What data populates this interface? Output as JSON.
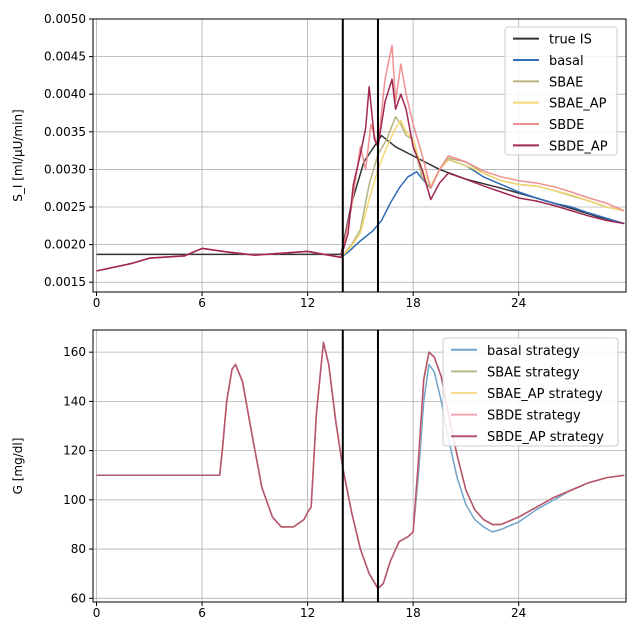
{
  "chart_data": [
    {
      "type": "line",
      "ylabel": "S_I [ml/μU/min]",
      "xlabel": "",
      "xlim": [
        -0.2,
        30.1
      ],
      "ylim": [
        0.00137,
        0.005
      ],
      "x_ticks": [
        0,
        6,
        12,
        18,
        24
      ],
      "x_tick_labels": [
        "0",
        "6",
        "12",
        "18",
        "24"
      ],
      "y_ticks": [
        0.0015,
        0.002,
        0.0025,
        0.003,
        0.0035,
        0.004,
        0.0045,
        0.005
      ],
      "y_tick_labels": [
        "0.0015",
        "0.0020",
        "0.0025",
        "0.0030",
        "0.0035",
        "0.0040",
        "0.0045",
        "0.0050"
      ],
      "grid": true,
      "legend_position": "top-right",
      "vlines": [
        14,
        16
      ],
      "series": [
        {
          "name": "true IS",
          "color": "#333333",
          "width": 1.5,
          "opacity": 1.0,
          "x": [
            0,
            13.9,
            14.5,
            15.2,
            16.2,
            17.0,
            18.0,
            19.5,
            21.0,
            23.0,
            25.0,
            27.0,
            28.5,
            30.0
          ],
          "y": [
            0.00187,
            0.00187,
            0.00255,
            0.0031,
            0.00345,
            0.0033,
            0.00318,
            0.003,
            0.00287,
            0.00275,
            0.00262,
            0.00248,
            0.00237,
            0.00228
          ]
        },
        {
          "name": "basal",
          "color": "#2e6db5",
          "width": 1.5,
          "opacity": 1.0,
          "x": [
            0,
            2,
            3,
            5,
            6,
            7.5,
            9,
            12,
            13.9,
            14.3,
            15,
            15.7,
            16.2,
            16.7,
            17.2,
            17.7,
            18.2,
            18.5,
            19.0,
            19.5,
            20,
            21,
            22,
            23,
            24,
            25,
            26,
            27,
            28,
            29,
            30
          ],
          "y": [
            0.00165,
            0.00175,
            0.00182,
            0.00185,
            0.00195,
            0.0019,
            0.00186,
            0.00191,
            0.00183,
            0.0019,
            0.00205,
            0.00218,
            0.00232,
            0.00255,
            0.00275,
            0.0029,
            0.00297,
            0.00288,
            0.00275,
            0.003,
            0.00313,
            0.00305,
            0.0029,
            0.0028,
            0.0027,
            0.00262,
            0.00255,
            0.0025,
            0.00242,
            0.00235,
            0.00228
          ]
        },
        {
          "name": "SBAE",
          "color": "#b3b07a",
          "width": 1.5,
          "opacity": 0.95,
          "x": [
            0,
            2,
            3,
            5,
            6,
            7.5,
            9,
            12,
            13.9,
            14.5,
            15.0,
            15.5,
            16.0,
            16.5,
            17.0,
            17.3,
            17.6,
            18.0,
            18.5,
            19.0,
            19.5,
            20,
            21,
            22,
            23,
            24,
            25,
            26,
            27,
            28,
            29,
            30
          ],
          "y": [
            0.00165,
            0.00175,
            0.00182,
            0.00185,
            0.00195,
            0.0019,
            0.00186,
            0.00191,
            0.00183,
            0.002,
            0.0022,
            0.0028,
            0.0032,
            0.0034,
            0.0037,
            0.0036,
            0.00345,
            0.0034,
            0.0029,
            0.00275,
            0.003,
            0.00315,
            0.0031,
            0.00295,
            0.00285,
            0.0028,
            0.00278,
            0.00272,
            0.00265,
            0.00258,
            0.0025,
            0.00245
          ]
        },
        {
          "name": "SBAE_AP",
          "color": "#f5d76e",
          "width": 1.5,
          "opacity": 0.95,
          "x": [
            0,
            2,
            3,
            5,
            6,
            7.5,
            9,
            12,
            13.9,
            14.5,
            15.0,
            15.5,
            16.0,
            16.5,
            17.0,
            17.3,
            17.6,
            18.0,
            18.5,
            19.0,
            19.5,
            20,
            21,
            22,
            23,
            24,
            25,
            26,
            27,
            28,
            29,
            30
          ],
          "y": [
            0.00165,
            0.00175,
            0.00182,
            0.00185,
            0.00195,
            0.0019,
            0.00186,
            0.00191,
            0.00183,
            0.00198,
            0.00215,
            0.0026,
            0.003,
            0.0033,
            0.00355,
            0.00365,
            0.0035,
            0.0034,
            0.003,
            0.00278,
            0.003,
            0.00313,
            0.00305,
            0.00295,
            0.00285,
            0.0028,
            0.00278,
            0.00272,
            0.00266,
            0.00258,
            0.0025,
            0.00245
          ]
        },
        {
          "name": "SBDE",
          "color": "#ef8a8a",
          "width": 1.5,
          "opacity": 0.95,
          "x": [
            0,
            2,
            3,
            5,
            6,
            7.5,
            9,
            12,
            13.9,
            14.5,
            15.0,
            15.3,
            15.6,
            16.0,
            16.4,
            16.8,
            17.0,
            17.3,
            17.6,
            18.0,
            18.5,
            19.0,
            19.5,
            20,
            21,
            22,
            23,
            24,
            25,
            26,
            27,
            28,
            29,
            30
          ],
          "y": [
            0.00165,
            0.00175,
            0.00182,
            0.00185,
            0.00195,
            0.0019,
            0.00186,
            0.00191,
            0.00183,
            0.0025,
            0.0033,
            0.003,
            0.0036,
            0.0033,
            0.0042,
            0.00465,
            0.0039,
            0.0044,
            0.004,
            0.0036,
            0.0032,
            0.00275,
            0.003,
            0.00318,
            0.0031,
            0.00298,
            0.0029,
            0.00285,
            0.00282,
            0.00277,
            0.0027,
            0.00262,
            0.00255,
            0.00245
          ]
        },
        {
          "name": "SBDE_AP",
          "color": "#9b1c4a",
          "width": 1.5,
          "opacity": 0.95,
          "x": [
            0,
            2,
            3,
            5,
            6,
            7.5,
            9,
            12,
            13.9,
            14.3,
            14.6,
            15.0,
            15.3,
            15.5,
            15.8,
            16.0,
            16.4,
            16.8,
            17.0,
            17.3,
            17.6,
            18.0,
            18.5,
            19.0,
            19.5,
            20,
            21,
            22,
            23,
            24,
            25,
            26,
            27,
            28,
            29,
            30
          ],
          "y": [
            0.00165,
            0.00175,
            0.00182,
            0.00185,
            0.00195,
            0.0019,
            0.00186,
            0.00191,
            0.00183,
            0.00215,
            0.0028,
            0.0032,
            0.00355,
            0.0041,
            0.0034,
            0.0033,
            0.0039,
            0.0042,
            0.0038,
            0.004,
            0.0038,
            0.0033,
            0.003,
            0.0026,
            0.00282,
            0.00295,
            0.00287,
            0.00278,
            0.0027,
            0.00262,
            0.00258,
            0.00252,
            0.00245,
            0.00238,
            0.00232,
            0.00228
          ]
        }
      ]
    },
    {
      "type": "line",
      "ylabel": "G [mg/dl]",
      "xlabel": "",
      "xlim": [
        -0.2,
        30.1
      ],
      "ylim": [
        58.5,
        169
      ],
      "x_ticks": [
        0,
        6,
        12,
        18,
        24
      ],
      "x_tick_labels": [
        "0",
        "6",
        "12",
        "18",
        "24"
      ],
      "y_ticks": [
        60,
        80,
        100,
        120,
        140,
        160
      ],
      "y_tick_labels": [
        "60",
        "80",
        "100",
        "120",
        "140",
        "160"
      ],
      "grid": true,
      "legend_position": "top-right",
      "vlines": [
        14,
        16
      ],
      "series": [
        {
          "name": "basal strategy",
          "color": "#6fa3cc",
          "width": 1.5,
          "opacity": 1.0,
          "x": [
            0,
            7.0,
            7.15,
            7.4,
            7.7,
            7.9,
            8.3,
            8.8,
            9.4,
            10.0,
            10.5,
            11.2,
            11.8,
            12.0,
            12.2,
            12.5,
            12.9,
            13.2,
            13.6,
            14.0,
            14.5,
            15.0,
            15.5,
            16.0,
            16.3,
            16.7,
            17.2,
            17.7,
            18.0,
            18.3,
            18.6,
            18.9,
            19.2,
            19.6,
            20.0,
            20.5,
            21.0,
            21.5,
            22.0,
            22.5,
            23.0,
            24.0,
            25.0,
            26.0,
            27.0,
            28.0,
            29.0,
            30.0
          ],
          "y": [
            110,
            110,
            120,
            140,
            153,
            155,
            148,
            128,
            105,
            93,
            89,
            89,
            92,
            95,
            97,
            135,
            164,
            155,
            132,
            113,
            95,
            80,
            70,
            64,
            66,
            75,
            83,
            85,
            87,
            110,
            140,
            155,
            152,
            140,
            125,
            109,
            98,
            92,
            89,
            87,
            88,
            91,
            96,
            100,
            104,
            107,
            109,
            110
          ]
        },
        {
          "name": "SBAE strategy",
          "color": "#b8b88f",
          "width": 1.5,
          "opacity": 1.0,
          "x": [
            0,
            7.0,
            7.15,
            7.4,
            7.7,
            7.9,
            8.3,
            8.8,
            9.4,
            10.0,
            10.5,
            11.2,
            11.8,
            12.0,
            12.2,
            12.5,
            12.9,
            13.2,
            13.6,
            14.0,
            14.5,
            15.0,
            15.5,
            16.0,
            16.3,
            16.7,
            17.2,
            17.7,
            18.0,
            18.3,
            18.6,
            18.9,
            19.2,
            19.6,
            20.0,
            20.5,
            21.0,
            21.5,
            22.0,
            22.5,
            23.0,
            24.0,
            25.0,
            26.0,
            27.0,
            28.0,
            29.0,
            30.0
          ],
          "y": [
            110,
            110,
            120,
            140,
            153,
            155,
            148,
            128,
            105,
            93,
            89,
            89,
            92,
            95,
            97,
            135,
            164,
            155,
            132,
            113,
            95,
            80,
            70,
            64,
            66,
            75,
            83,
            85,
            87,
            115,
            148,
            160,
            158,
            150,
            135,
            118,
            104,
            96,
            92,
            90,
            90,
            93,
            97,
            101,
            104,
            107,
            109,
            110
          ]
        },
        {
          "name": "SBAE_AP strategy",
          "color": "#f6dc8c",
          "width": 1.5,
          "opacity": 1.0,
          "x": [
            0,
            7.0,
            7.15,
            7.4,
            7.7,
            7.9,
            8.3,
            8.8,
            9.4,
            10.0,
            10.5,
            11.2,
            11.8,
            12.0,
            12.2,
            12.5,
            12.9,
            13.2,
            13.6,
            14.0,
            14.5,
            15.0,
            15.5,
            16.0,
            16.3,
            16.7,
            17.2,
            17.7,
            18.0,
            18.3,
            18.6,
            18.9,
            19.2,
            19.6,
            20.0,
            20.5,
            21.0,
            21.5,
            22.0,
            22.5,
            23.0,
            24.0,
            25.0,
            26.0,
            27.0,
            28.0,
            29.0,
            30.0
          ],
          "y": [
            110,
            110,
            120,
            140,
            153,
            155,
            148,
            128,
            105,
            93,
            89,
            89,
            92,
            95,
            97,
            135,
            164,
            155,
            132,
            113,
            95,
            80,
            70,
            64,
            66,
            75,
            83,
            85,
            87,
            115,
            148,
            160,
            158,
            150,
            135,
            118,
            104,
            96,
            92,
            90,
            90,
            93,
            97,
            101,
            104,
            107,
            109,
            110
          ]
        },
        {
          "name": "SBDE strategy",
          "color": "#f4a6b6",
          "width": 1.5,
          "opacity": 1.0,
          "x": [
            0,
            7.0,
            7.15,
            7.4,
            7.7,
            7.9,
            8.3,
            8.8,
            9.4,
            10.0,
            10.5,
            11.2,
            11.8,
            12.0,
            12.2,
            12.5,
            12.9,
            13.2,
            13.6,
            14.0,
            14.5,
            15.0,
            15.5,
            16.0,
            16.3,
            16.7,
            17.2,
            17.7,
            18.0,
            18.3,
            18.6,
            18.9,
            19.2,
            19.6,
            20.0,
            20.5,
            21.0,
            21.5,
            22.0,
            22.5,
            23.0,
            24.0,
            25.0,
            26.0,
            27.0,
            28.0,
            29.0,
            30.0
          ],
          "y": [
            110,
            110,
            120,
            140,
            153,
            155,
            148,
            128,
            105,
            93,
            89,
            89,
            92,
            95,
            97,
            135,
            164,
            155,
            132,
            113,
            95,
            80,
            70,
            64,
            66,
            75,
            83,
            85,
            87,
            116,
            149,
            160,
            158,
            150,
            135,
            118,
            104,
            96,
            92,
            90,
            90,
            93,
            97,
            101,
            104,
            107,
            109,
            110
          ]
        },
        {
          "name": "SBDE_AP strategy",
          "color": "#b5566e",
          "width": 1.5,
          "opacity": 1.0,
          "x": [
            0,
            7.0,
            7.15,
            7.4,
            7.7,
            7.9,
            8.3,
            8.8,
            9.4,
            10.0,
            10.5,
            11.2,
            11.8,
            12.0,
            12.2,
            12.5,
            12.9,
            13.2,
            13.6,
            14.0,
            14.5,
            15.0,
            15.5,
            16.0,
            16.3,
            16.7,
            17.2,
            17.7,
            18.0,
            18.3,
            18.6,
            18.9,
            19.2,
            19.6,
            20.0,
            20.5,
            21.0,
            21.5,
            22.0,
            22.5,
            23.0,
            24.0,
            25.0,
            26.0,
            27.0,
            28.0,
            29.0,
            30.0
          ],
          "y": [
            110,
            110,
            120,
            140,
            153,
            155,
            148,
            128,
            105,
            93,
            89,
            89,
            92,
            95,
            97,
            135,
            164,
            155,
            132,
            113,
            95,
            80,
            70,
            64,
            66,
            75,
            83,
            85,
            87,
            116,
            149,
            160,
            158,
            150,
            135,
            118,
            104,
            96,
            92,
            90,
            90,
            93,
            97,
            101,
            104,
            107,
            109,
            110
          ]
        }
      ]
    }
  ]
}
